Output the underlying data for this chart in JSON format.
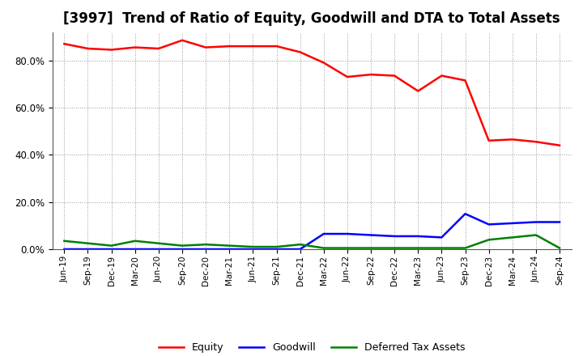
{
  "title": "[3997]  Trend of Ratio of Equity, Goodwill and DTA to Total Assets",
  "x_labels": [
    "Jun-19",
    "Sep-19",
    "Dec-19",
    "Mar-20",
    "Jun-20",
    "Sep-20",
    "Dec-20",
    "Mar-21",
    "Jun-21",
    "Sep-21",
    "Dec-21",
    "Mar-22",
    "Jun-22",
    "Sep-22",
    "Dec-22",
    "Mar-23",
    "Jun-23",
    "Sep-23",
    "Dec-23",
    "Mar-24",
    "Jun-24",
    "Sep-24"
  ],
  "equity": [
    87.0,
    85.0,
    84.5,
    85.5,
    85.0,
    88.5,
    85.5,
    86.0,
    86.0,
    86.0,
    83.5,
    79.0,
    73.0,
    74.0,
    73.5,
    67.0,
    73.5,
    71.5,
    46.0,
    46.5,
    45.5,
    44.0
  ],
  "goodwill": [
    0.0,
    0.0,
    0.0,
    0.0,
    0.0,
    0.0,
    0.0,
    0.0,
    0.0,
    0.0,
    0.0,
    6.5,
    6.5,
    6.0,
    5.5,
    5.5,
    5.0,
    15.0,
    10.5,
    11.0,
    11.5,
    11.5
  ],
  "dta": [
    3.5,
    2.5,
    1.5,
    3.5,
    2.5,
    1.5,
    2.0,
    1.5,
    1.0,
    1.0,
    2.0,
    0.5,
    0.5,
    0.5,
    0.5,
    0.5,
    0.5,
    0.5,
    4.0,
    5.0,
    6.0,
    0.5
  ],
  "equity_color": "#FF0000",
  "goodwill_color": "#0000FF",
  "dta_color": "#008000",
  "ylim": [
    0.0,
    92.0
  ],
  "yticks": [
    0.0,
    20.0,
    40.0,
    60.0,
    80.0
  ],
  "background_color": "#FFFFFF",
  "plot_bg_color": "#FFFFFF",
  "grid_color": "#999999",
  "title_fontsize": 12,
  "legend_labels": [
    "Equity",
    "Goodwill",
    "Deferred Tax Assets"
  ],
  "linewidth": 1.8
}
